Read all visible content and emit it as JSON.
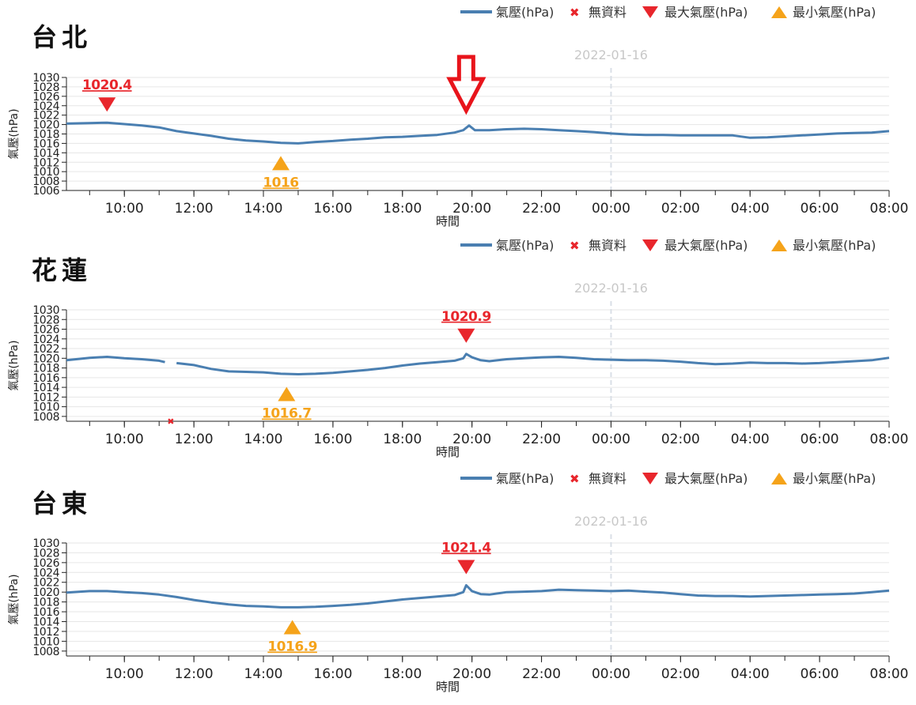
{
  "legend": {
    "pressure": "氣壓(hPa)",
    "nodata": "無資料",
    "max": "最大氣壓(hPa)",
    "min": "最小氣壓(hPa)"
  },
  "colors": {
    "line": "#4a7fb1",
    "max": "#e8262c",
    "min": "#f5a31a",
    "nodata": "#e8262c",
    "grid": "#e6e6e6",
    "date_marker": "#dadfe6",
    "arrow": "#e8141b"
  },
  "annotation": {
    "type": "arrow-down-outline",
    "chart_index": 0,
    "x": "19:50"
  },
  "chart_data": [
    {
      "type": "line",
      "station": "台北",
      "date_label": "2022-01-16",
      "date_x": "00:00",
      "xlabel": "時間",
      "ylabel": "氣壓(hPa)",
      "ylim": [
        1006,
        1030
      ],
      "yticks": [
        1006,
        1008,
        1010,
        1012,
        1014,
        1016,
        1018,
        1020,
        1022,
        1024,
        1026,
        1028,
        1030
      ],
      "xrange": [
        "08:20",
        "08:00"
      ],
      "xticks": [
        "10:00",
        "12:00",
        "14:00",
        "16:00",
        "18:00",
        "20:00",
        "22:00",
        "00:00",
        "02:00",
        "04:00",
        "06:00",
        "08:00"
      ],
      "grid": true,
      "series": [
        {
          "name": "氣壓(hPa)",
          "x": [
            "08:20",
            "09:00",
            "09:30",
            "10:00",
            "10:30",
            "11:00",
            "11:30",
            "12:00",
            "12:30",
            "13:00",
            "13:30",
            "14:00",
            "14:30",
            "15:00",
            "15:30",
            "16:00",
            "16:30",
            "17:00",
            "17:30",
            "18:00",
            "18:30",
            "19:00",
            "19:30",
            "19:45",
            "19:55",
            "20:05",
            "20:30",
            "21:00",
            "21:30",
            "22:00",
            "22:30",
            "23:00",
            "23:30",
            "00:00",
            "00:30",
            "01:00",
            "01:30",
            "02:00",
            "02:30",
            "03:00",
            "03:30",
            "04:00",
            "04:30",
            "05:00",
            "05:30",
            "06:00",
            "06:30",
            "07:00",
            "07:30",
            "08:00"
          ],
          "y": [
            1020.2,
            1020.3,
            1020.4,
            1020.1,
            1019.8,
            1019.4,
            1018.6,
            1018.1,
            1017.6,
            1017.0,
            1016.6,
            1016.4,
            1016.1,
            1016.0,
            1016.3,
            1016.5,
            1016.8,
            1017.0,
            1017.3,
            1017.4,
            1017.6,
            1017.8,
            1018.3,
            1018.8,
            1019.8,
            1018.8,
            1018.8,
            1019.0,
            1019.1,
            1019.0,
            1018.8,
            1018.6,
            1018.4,
            1018.1,
            1017.9,
            1017.8,
            1017.8,
            1017.7,
            1017.7,
            1017.7,
            1017.7,
            1017.2,
            1017.3,
            1017.5,
            1017.7,
            1017.9,
            1018.1,
            1018.2,
            1018.3,
            1018.6
          ]
        }
      ],
      "max": {
        "x": "09:30",
        "value": 1020.4,
        "label": "1020.4"
      },
      "min": {
        "x": "14:30",
        "value": 1016.0,
        "label": "1016"
      },
      "nodata": []
    },
    {
      "type": "line",
      "station": "花蓮",
      "date_label": "2022-01-16",
      "date_x": "00:00",
      "xlabel": "時間",
      "ylabel": "氣壓(hPa)",
      "ylim": [
        1007,
        1030
      ],
      "yticks": [
        1008,
        1010,
        1012,
        1014,
        1016,
        1018,
        1020,
        1022,
        1024,
        1026,
        1028,
        1030
      ],
      "xrange": [
        "08:20",
        "08:00"
      ],
      "xticks": [
        "10:00",
        "12:00",
        "14:00",
        "16:00",
        "18:00",
        "20:00",
        "22:00",
        "00:00",
        "02:00",
        "04:00",
        "06:00",
        "08:00"
      ],
      "grid": true,
      "series": [
        {
          "name": "氣壓(hPa)",
          "x": [
            "08:20",
            "09:00",
            "09:30",
            "10:00",
            "10:30",
            "11:00",
            "11:10",
            null,
            "11:30",
            "12:00",
            "12:30",
            "13:00",
            "13:30",
            "14:00",
            "14:30",
            "15:00",
            "15:30",
            "16:00",
            "16:30",
            "17:00",
            "17:30",
            "18:00",
            "18:30",
            "19:00",
            "19:30",
            "19:45",
            "19:50",
            "20:00",
            "20:15",
            "20:30",
            "21:00",
            "21:30",
            "22:00",
            "22:30",
            "23:00",
            "23:30",
            "00:00",
            "00:30",
            "01:00",
            "01:30",
            "02:00",
            "02:30",
            "03:00",
            "03:30",
            "04:00",
            "04:30",
            "05:00",
            "05:30",
            "06:00",
            "06:30",
            "07:00",
            "07:30",
            "08:00"
          ],
          "y": [
            1019.6,
            1020.1,
            1020.3,
            1020.0,
            1019.8,
            1019.5,
            1019.2,
            null,
            1019.0,
            1018.6,
            1017.8,
            1017.3,
            1017.2,
            1017.1,
            1016.8,
            1016.7,
            1016.8,
            1017.0,
            1017.3,
            1017.6,
            1018.0,
            1018.5,
            1018.9,
            1019.2,
            1019.5,
            1020.0,
            1020.9,
            1020.2,
            1019.6,
            1019.4,
            1019.8,
            1020.0,
            1020.2,
            1020.3,
            1020.1,
            1019.8,
            1019.7,
            1019.6,
            1019.6,
            1019.5,
            1019.3,
            1019.0,
            1018.8,
            1018.9,
            1019.1,
            1019.0,
            1019.0,
            1018.9,
            1019.0,
            1019.2,
            1019.4,
            1019.6,
            1020.1
          ]
        }
      ],
      "max": {
        "x": "19:50",
        "value": 1020.9,
        "label": "1020.9"
      },
      "min": {
        "x": "14:40",
        "value": 1016.7,
        "label": "1016.7"
      },
      "nodata": [
        "11:20"
      ]
    },
    {
      "type": "line",
      "station": "台東",
      "date_label": "2022-01-16",
      "date_x": "00:00",
      "xlabel": "時間",
      "ylabel": "氣壓(hPa)",
      "ylim": [
        1007,
        1030
      ],
      "yticks": [
        1008,
        1010,
        1012,
        1014,
        1016,
        1018,
        1020,
        1022,
        1024,
        1026,
        1028,
        1030
      ],
      "xrange": [
        "08:20",
        "08:00"
      ],
      "xticks": [
        "10:00",
        "12:00",
        "14:00",
        "16:00",
        "18:00",
        "20:00",
        "22:00",
        "00:00",
        "02:00",
        "04:00",
        "06:00",
        "08:00"
      ],
      "grid": true,
      "series": [
        {
          "name": "氣壓(hPa)",
          "x": [
            "08:20",
            "09:00",
            "09:30",
            "10:00",
            "10:30",
            "11:00",
            "11:30",
            "12:00",
            "12:30",
            "13:00",
            "13:30",
            "14:00",
            "14:30",
            "15:00",
            "15:30",
            "16:00",
            "16:30",
            "17:00",
            "17:30",
            "18:00",
            "18:30",
            "19:00",
            "19:30",
            "19:45",
            "19:50",
            "20:00",
            "20:15",
            "20:30",
            "21:00",
            "21:30",
            "22:00",
            "22:30",
            "23:00",
            "23:30",
            "00:00",
            "00:30",
            "01:00",
            "01:30",
            "02:00",
            "02:30",
            "03:00",
            "03:30",
            "04:00",
            "04:30",
            "05:00",
            "05:30",
            "06:00",
            "06:30",
            "07:00",
            "07:30",
            "08:00"
          ],
          "y": [
            1019.9,
            1020.2,
            1020.2,
            1020.0,
            1019.8,
            1019.5,
            1019.0,
            1018.4,
            1017.9,
            1017.5,
            1017.2,
            1017.1,
            1016.9,
            1016.9,
            1017.0,
            1017.2,
            1017.4,
            1017.7,
            1018.1,
            1018.5,
            1018.8,
            1019.1,
            1019.4,
            1020.0,
            1021.4,
            1020.2,
            1019.6,
            1019.5,
            1020.0,
            1020.1,
            1020.2,
            1020.5,
            1020.4,
            1020.3,
            1020.2,
            1020.3,
            1020.1,
            1019.9,
            1019.6,
            1019.3,
            1019.2,
            1019.2,
            1019.1,
            1019.2,
            1019.3,
            1019.4,
            1019.5,
            1019.6,
            1019.7,
            1020.0,
            1020.3
          ]
        }
      ],
      "max": {
        "x": "19:50",
        "value": 1021.4,
        "label": "1021.4"
      },
      "min": {
        "x": "14:50",
        "value": 1016.9,
        "label": "1016.9"
      },
      "nodata": []
    }
  ]
}
